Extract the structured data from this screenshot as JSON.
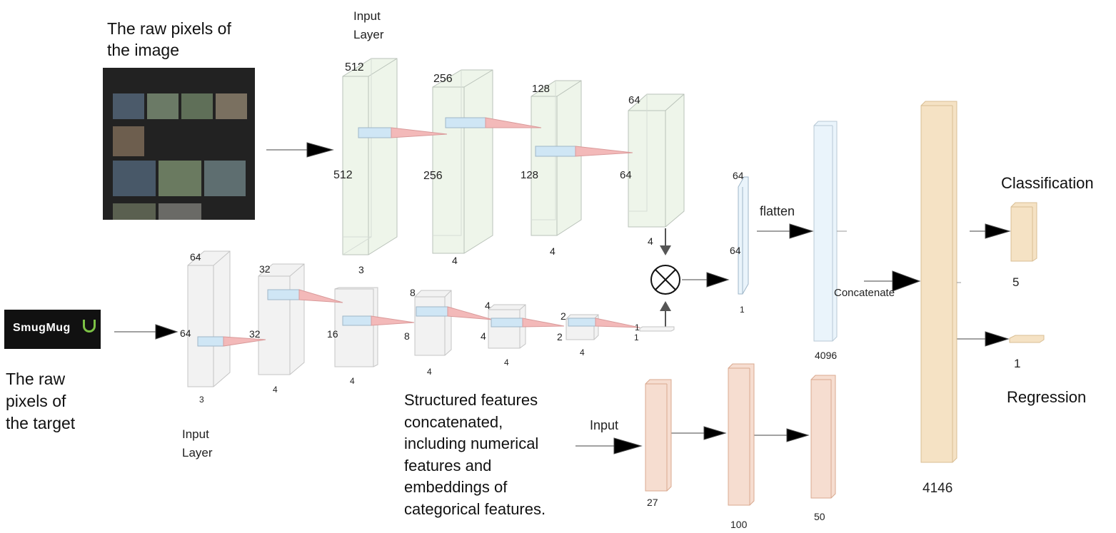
{
  "labels": {
    "image_raw": "The raw pixels of\nthe image",
    "target_raw": "The raw\npixels of\nthe target",
    "input_layer_top": "Input\nLayer",
    "input_layer_bottom": "Input\nLayer",
    "structured": "Structured features\nconcatenated,\nincluding numerical\nfeatures and\nembeddings of\ncategorical features.",
    "input_struct": "Input",
    "flatten": "flatten",
    "concatenate": "Concatenate",
    "classification": "Classification",
    "regression": "Regression",
    "logo_text": "SmugMug"
  },
  "image_branch": {
    "blocks": [
      {
        "top": "512",
        "side": "512",
        "depth": "3"
      },
      {
        "top": "256",
        "side": "256",
        "depth": "4"
      },
      {
        "top": "128",
        "side": "128",
        "depth": "4"
      },
      {
        "top": "64",
        "side": "64",
        "depth": "4"
      }
    ]
  },
  "target_branch": {
    "blocks": [
      {
        "top": "64",
        "side": "64",
        "depth": "3"
      },
      {
        "top": "32",
        "side": "32",
        "depth": "4"
      },
      {
        "top": "",
        "side": "16",
        "depth": "4"
      },
      {
        "top": "8",
        "side": "8",
        "depth": "4"
      },
      {
        "top": "4",
        "side": "4",
        "depth": "4"
      },
      {
        "top": "2",
        "side": "2",
        "depth": "4"
      }
    ],
    "end_labels": [
      "1",
      "1"
    ]
  },
  "merged": {
    "top": "64",
    "side": "64",
    "depth": "1"
  },
  "dense": {
    "flatten_units": "4096",
    "concat_units": "4146",
    "class_units": "5",
    "reg_units": "1"
  },
  "struct_branch": {
    "units": [
      "27",
      "100",
      "50"
    ]
  },
  "colors": {
    "green_face": "#eef5ea",
    "gray_face": "#f2f2f2",
    "blue_slab": "#cfe6f5",
    "pink_cone": "#f3b9b9",
    "ice": "#eaf4fb",
    "tan": "#f5e2c4",
    "peach": "#f6ddd0"
  }
}
